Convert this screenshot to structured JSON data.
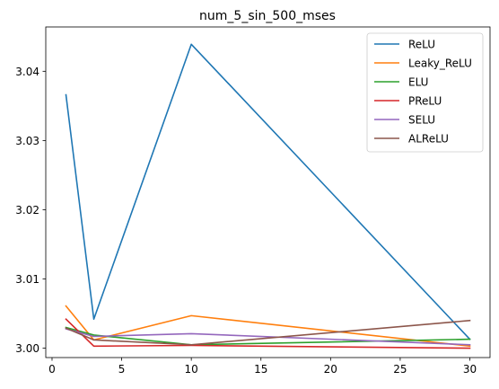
{
  "chart_data": {
    "type": "line",
    "title": "num_5_sin_500_mses",
    "xlabel": "",
    "ylabel": "",
    "xlim": [
      -0.45,
      31.45
    ],
    "ylim": [
      2.99865,
      3.0464
    ],
    "xticks": [
      0,
      5,
      10,
      15,
      20,
      25,
      30
    ],
    "yticks": [
      3.0,
      3.01,
      3.02,
      3.03,
      3.04
    ],
    "ytick_labels": [
      "3.00",
      "3.01",
      "3.02",
      "3.03",
      "3.04"
    ],
    "x": [
      1,
      3,
      10,
      30
    ],
    "legend_position": "top-right",
    "grid": false,
    "series": [
      {
        "name": "ReLU",
        "color": "#1f77b4",
        "values": [
          3.0366,
          3.0042,
          3.0439,
          3.0013
        ]
      },
      {
        "name": "Leaky_ReLU",
        "color": "#ff7f0e",
        "values": [
          3.0061,
          3.0012,
          3.0047,
          3.0003
        ]
      },
      {
        "name": "ELU",
        "color": "#2ca02c",
        "values": [
          3.003,
          3.0019,
          3.0005,
          3.0013
        ]
      },
      {
        "name": "PReLU",
        "color": "#d62728",
        "values": [
          3.0042,
          3.0003,
          3.0004,
          3.0
        ]
      },
      {
        "name": "SELU",
        "color": "#9467bd",
        "values": [
          3.0028,
          3.0017,
          3.0021,
          3.0005
        ]
      },
      {
        "name": "ALReLU",
        "color": "#8c564b",
        "values": [
          3.0029,
          3.0012,
          3.0005,
          3.004
        ]
      }
    ]
  }
}
